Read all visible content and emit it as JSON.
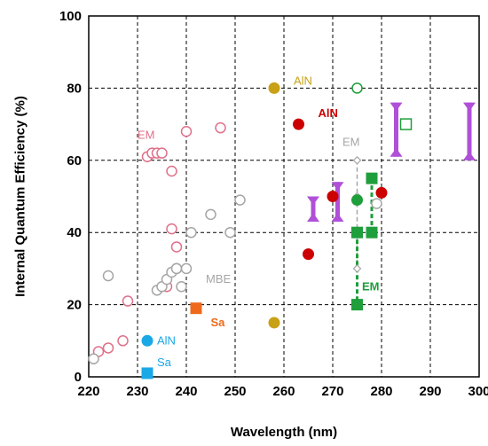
{
  "chart_data": {
    "type": "scatter",
    "title": "",
    "xlabel": "Wavelength (nm)",
    "ylabel": "Internal Quantum Efficiency (%)",
    "xlim": [
      220,
      300
    ],
    "ylim": [
      0,
      100
    ],
    "xticks": [
      "220",
      "230",
      "240",
      "250",
      "260",
      "270",
      "280",
      "290",
      "300"
    ],
    "yticks": [
      "0",
      "20",
      "40",
      "60",
      "80",
      "100"
    ],
    "grid": "dashed",
    "series": [
      {
        "color": "#e0708a",
        "shape": "open-circle",
        "points": [
          [
            222,
            7
          ],
          [
            224,
            8
          ],
          [
            227,
            10
          ],
          [
            228,
            21
          ],
          [
            232,
            61
          ],
          [
            233,
            62
          ],
          [
            234,
            62
          ],
          [
            235,
            62
          ],
          [
            236,
            25
          ],
          [
            237,
            57
          ],
          [
            237,
            41
          ],
          [
            238,
            30
          ],
          [
            238,
            36
          ],
          [
            240,
            68
          ],
          [
            247,
            69
          ]
        ]
      },
      {
        "color": "#a6a6a6",
        "shape": "open-circle",
        "points": [
          [
            221,
            5
          ],
          [
            224,
            28
          ],
          [
            234,
            24
          ],
          [
            235,
            25
          ],
          [
            236,
            27
          ],
          [
            237,
            29
          ],
          [
            238,
            30
          ],
          [
            239,
            25
          ],
          [
            240,
            30
          ],
          [
            241,
            40
          ],
          [
            245,
            45
          ],
          [
            249,
            40
          ],
          [
            251,
            49
          ],
          [
            279,
            48
          ]
        ]
      },
      {
        "color": "#a6a6a6",
        "shape": "open-diamond",
        "points": [
          [
            275,
            60
          ],
          [
            275,
            50
          ],
          [
            275,
            30
          ]
        ]
      },
      {
        "color": "#c8a117",
        "shape": "filled-circle",
        "points": [
          [
            258,
            80
          ],
          [
            258,
            15
          ]
        ]
      },
      {
        "color": "#cc0000",
        "shape": "filled-circle",
        "points": [
          [
            263,
            70
          ],
          [
            265,
            34
          ],
          [
            270,
            50
          ],
          [
            280,
            51
          ]
        ]
      },
      {
        "color": "#1f9e3c",
        "shape": "filled-circle",
        "points": [
          [
            275,
            49
          ]
        ]
      },
      {
        "color": "#1f9e3c",
        "shape": "open-circle",
        "points": [
          [
            275,
            80
          ]
        ]
      },
      {
        "color": "#1f9e3c",
        "shape": "open-square",
        "points": [
          [
            285,
            70
          ]
        ]
      },
      {
        "color": "#1f9e3c",
        "shape": "filled-square",
        "points": [
          [
            275,
            20
          ],
          [
            275,
            40
          ],
          [
            278,
            40
          ],
          [
            278,
            55
          ]
        ]
      },
      {
        "color": "#ee6a1a",
        "shape": "filled-square",
        "points": [
          [
            242,
            19
          ]
        ]
      },
      {
        "color": "#1ba8e6",
        "shape": "filled-circle",
        "points": [
          [
            232,
            10
          ]
        ]
      },
      {
        "color": "#1ba8e6",
        "shape": "filled-square",
        "points": [
          [
            232,
            1
          ]
        ]
      }
    ],
    "dashed_lines": [
      {
        "color": "#a6a6a6",
        "points": [
          [
            275,
            60
          ],
          [
            275,
            30
          ]
        ]
      },
      {
        "color": "#1f9e3c",
        "points": [
          [
            275,
            40
          ],
          [
            275,
            20
          ]
        ]
      },
      {
        "color": "#1f9e3c",
        "points": [
          [
            278,
            55
          ],
          [
            278,
            40
          ]
        ]
      }
    ],
    "range_bars": [
      {
        "color": "#b050d8",
        "x": 266,
        "ymin": 43,
        "ymax": 50
      },
      {
        "color": "#b050d8",
        "x": 271,
        "ymin": 43,
        "ymax": 54
      },
      {
        "color": "#b050d8",
        "x": 283,
        "ymin": 61,
        "ymax": 76
      },
      {
        "color": "#b050d8",
        "x": 298,
        "ymin": 60,
        "ymax": 76
      }
    ],
    "annotations": [
      {
        "text": "AlN",
        "color": "#c8a117",
        "x": 262,
        "y": 81
      },
      {
        "text": "AlN",
        "color": "#cc0000",
        "x": 267,
        "y": 72
      },
      {
        "text": "EM",
        "color": "#e0708a",
        "x": 230,
        "y": 66
      },
      {
        "text": "EM",
        "color": "#a6a6a6",
        "x": 272,
        "y": 64
      },
      {
        "text": "MBE",
        "color": "#a6a6a6",
        "x": 244,
        "y": 26
      },
      {
        "text": "EM",
        "color": "#1f9e3c",
        "x": 276,
        "y": 24
      },
      {
        "text": "Sa",
        "color": "#ee6a1a",
        "x": 245,
        "y": 14
      },
      {
        "text": "AlN",
        "color": "#1ba8e6",
        "x": 234,
        "y": 9
      },
      {
        "text": "Sa",
        "color": "#1ba8e6",
        "x": 234,
        "y": 3
      }
    ]
  }
}
